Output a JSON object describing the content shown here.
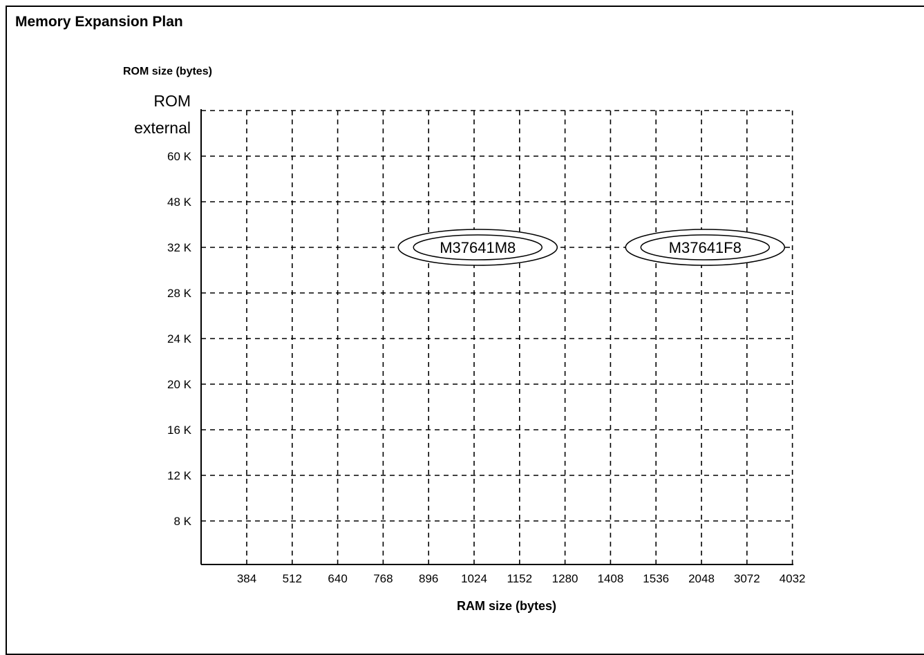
{
  "chart_data": {
    "type": "scatter",
    "title": "Memory Expansion Plan",
    "ylabel": "ROM size (bytes)",
    "xlabel": "RAM size (bytes)",
    "x_categories": [
      "384",
      "512",
      "640",
      "768",
      "896",
      "1024",
      "1152",
      "1280",
      "1408",
      "1536",
      "2048",
      "3072",
      "4032"
    ],
    "y_categories": [
      "8 K",
      "12 K",
      "16 K",
      "20 K",
      "24 K",
      "28 K",
      "32 K",
      "48 K",
      "60 K",
      "ROM\nexternal"
    ],
    "y_top_label_lines": [
      "ROM",
      "external"
    ],
    "grid": true,
    "grid_style": "dashed",
    "points": [
      {
        "label": "M37641M8",
        "ram_bytes": 1024,
        "rom": "32 K"
      },
      {
        "label": "M37641F8",
        "ram_bytes": 2048,
        "rom": "32 K"
      }
    ]
  }
}
